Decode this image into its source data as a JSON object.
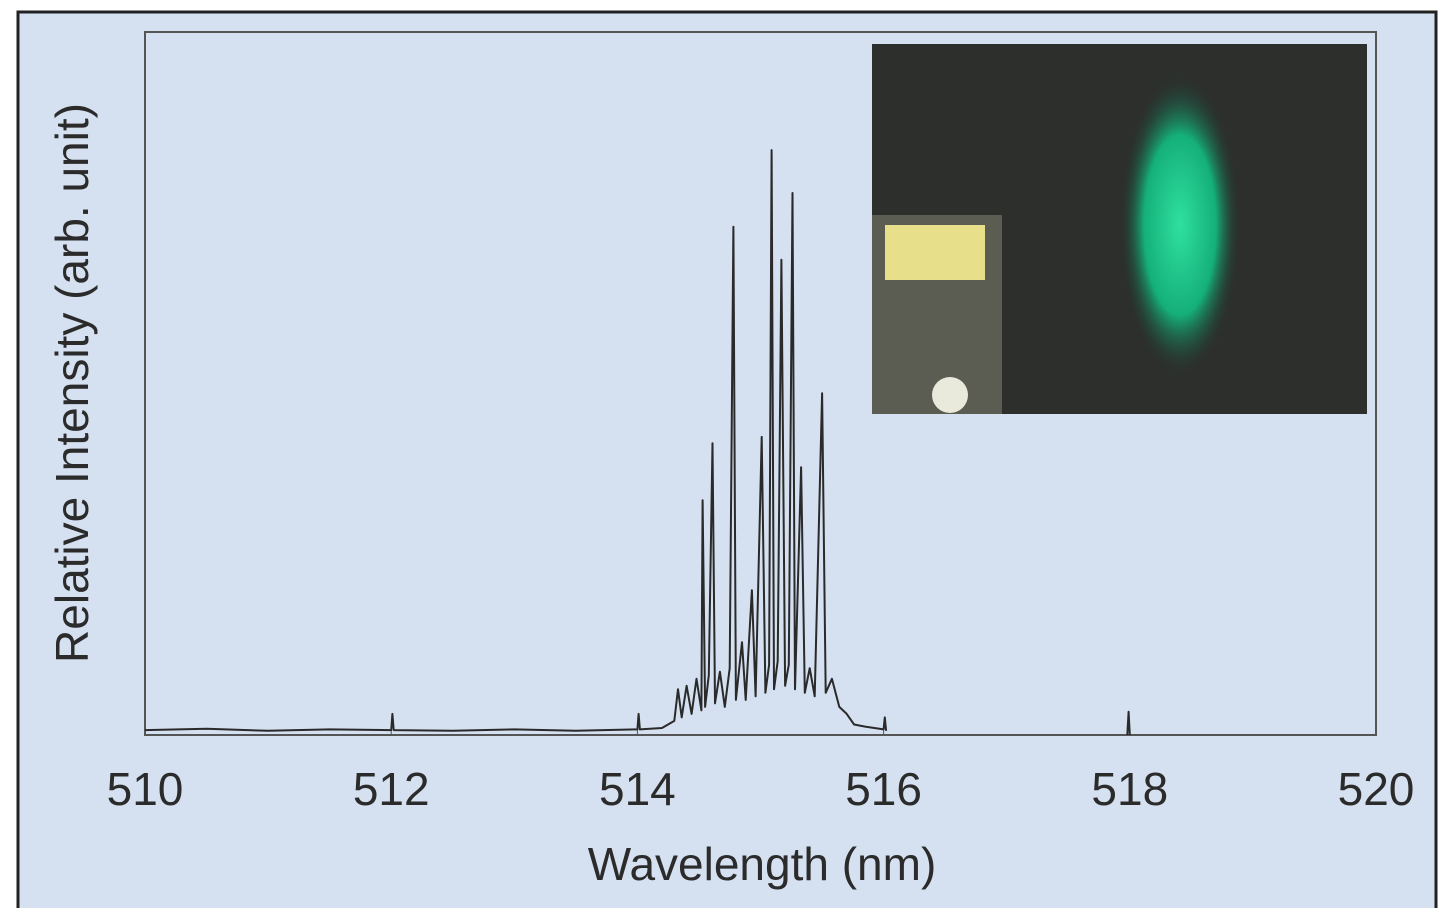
{
  "chart_data": {
    "type": "line",
    "x_label": "Wavelength (nm)",
    "y_label": "Relative Intensity (arb. unit)",
    "xlim": [
      510,
      520
    ],
    "xticks": [
      510,
      512,
      514,
      516,
      518,
      520
    ],
    "ylim": [
      0,
      100
    ],
    "grid": false,
    "series": [
      {
        "color": "#2a2a2a",
        "x": [
          510.0,
          510.5,
          511.0,
          511.5,
          512.0,
          512.01,
          512.02,
          512.5,
          513.0,
          513.5,
          514.0,
          514.01,
          514.02,
          514.2,
          514.3,
          514.33,
          514.36,
          514.4,
          514.44,
          514.48,
          514.52,
          514.53,
          514.55,
          514.58,
          514.61,
          514.63,
          514.67,
          514.71,
          514.75,
          514.78,
          514.8,
          514.85,
          514.88,
          514.93,
          514.96,
          515.01,
          515.04,
          515.07,
          515.09,
          515.11,
          515.14,
          515.17,
          515.2,
          515.23,
          515.26,
          515.28,
          515.33,
          515.36,
          515.4,
          515.44,
          515.5,
          515.53,
          515.58,
          515.64,
          515.7,
          515.76,
          515.85,
          516.0,
          516.01,
          516.02,
          517.0,
          517.98,
          517.99,
          518.0
        ],
        "values": [
          0.7,
          0.9,
          0.6,
          0.8,
          0.7,
          3.0,
          0.7,
          0.6,
          0.8,
          0.6,
          0.8,
          3.0,
          0.8,
          1.0,
          2.0,
          6.5,
          2.5,
          7.0,
          3.0,
          8.0,
          3.5,
          33.4,
          4.0,
          8.5,
          41.5,
          4.5,
          9.0,
          4.0,
          9.5,
          72.3,
          5.0,
          13.2,
          5.0,
          20.6,
          5.5,
          42.4,
          6.0,
          10.0,
          83.2,
          6.5,
          10.5,
          67.6,
          7.0,
          10.0,
          77.1,
          6.5,
          38.1,
          6.0,
          9.5,
          5.5,
          48.6,
          6.0,
          8.0,
          4.0,
          3.0,
          1.5,
          1.2,
          0.8,
          2.5,
          0.6,
          null,
          0.0,
          3.3,
          0.0
        ]
      }
    ]
  }
}
